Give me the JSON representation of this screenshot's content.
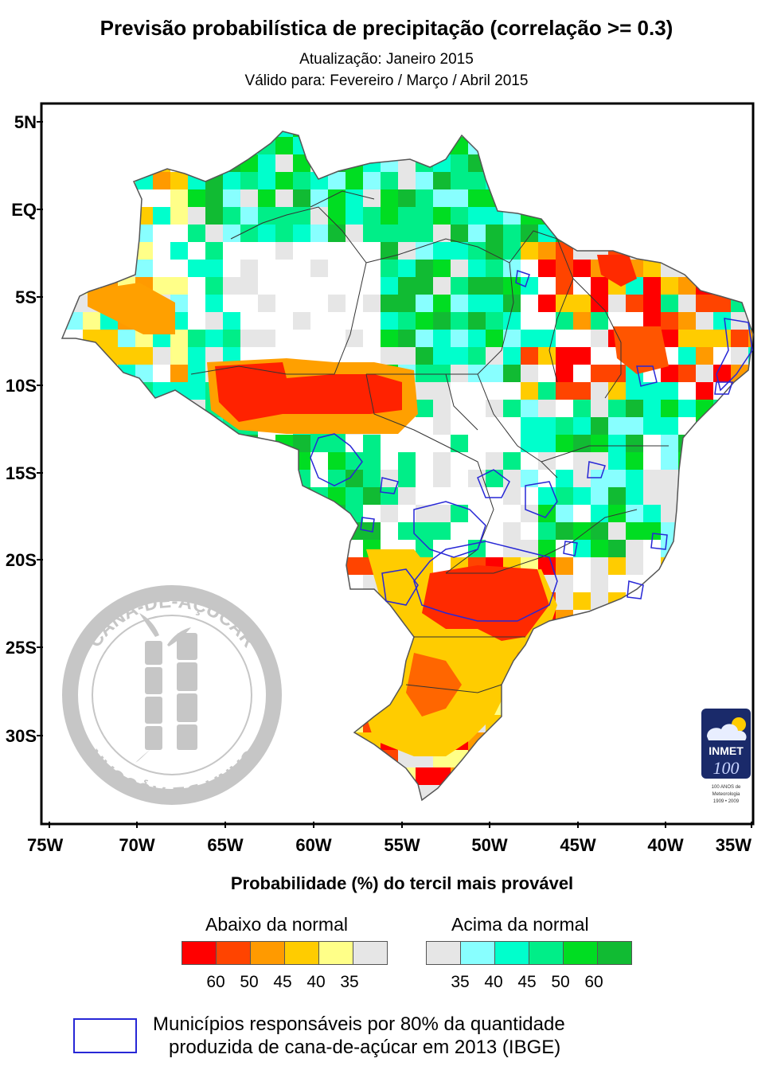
{
  "header": {
    "title": "Previsão probabilística de precipitação (correlação >= 0.3)",
    "update": "Atualização: Janeiro 2015",
    "valid": "Válido para: Fevereiro / Março / Abril 2015"
  },
  "axes": {
    "y_labels": [
      "5N",
      "EQ",
      "5S",
      "10S",
      "15S",
      "20S",
      "25S",
      "30S"
    ],
    "x_labels": [
      "75W",
      "70W",
      "65W",
      "60W",
      "55W",
      "50W",
      "45W",
      "40W",
      "35W"
    ]
  },
  "legend": {
    "title": "Probabilidade (%) do tercil mais provável",
    "below_label": "Abaixo da normal",
    "above_label": "Acima da normal",
    "below_colors": [
      "#ff0000",
      "#ff4400",
      "#ff9a00",
      "#ffcc00",
      "#ffff88",
      "#e6e6e6"
    ],
    "above_colors": [
      "#e6e6e6",
      "#88ffff",
      "#00ffcc",
      "#00ee88",
      "#00dd22",
      "#11bb33"
    ],
    "below_ticks": [
      "60",
      "50",
      "45",
      "40",
      "35"
    ],
    "above_ticks": [
      "35",
      "40",
      "45",
      "50",
      "60"
    ]
  },
  "municipalities": {
    "line1": "Municípios responsáveis por 80% da quantidade",
    "line2": "produzida de cana-de-açúcar em 2013 (IBGE)",
    "outline_color": "#2727d6"
  },
  "watermark": {
    "text": "CANA-DE-AÇÚCAR"
  },
  "logo": {
    "name": "INMET",
    "number": "100",
    "caption1": "100 ANOS de",
    "caption2": "Meteorologia",
    "caption3": "1909 • 2009"
  }
}
